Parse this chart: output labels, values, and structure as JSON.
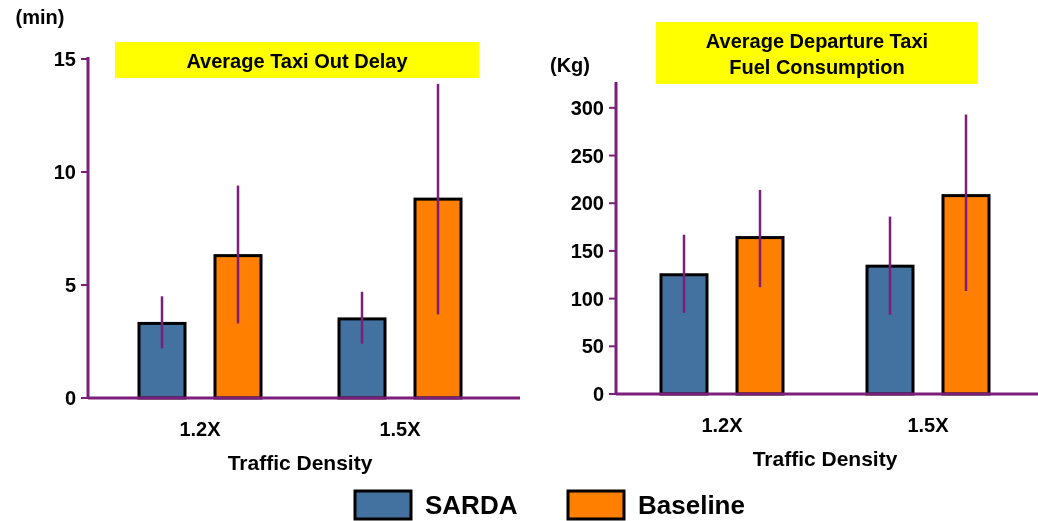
{
  "chart_data": [
    {
      "type": "bar",
      "title": "Average Taxi Out Delay",
      "ylabel": "(min)",
      "xlabel": "Traffic Density",
      "categories": [
        "1.2X",
        "1.5X"
      ],
      "series": [
        {
          "name": "SARDA",
          "color": "#4472a0",
          "values": [
            3.3,
            3.5
          ],
          "errors": [
            [
              2.2,
              4.5
            ],
            [
              2.4,
              4.7
            ]
          ]
        },
        {
          "name": "Baseline",
          "color": "#ff7f00",
          "values": [
            6.3,
            8.8
          ],
          "errors": [
            [
              3.3,
              9.4
            ],
            [
              3.7,
              13.9
            ]
          ]
        }
      ],
      "ylim": [
        0,
        15
      ],
      "yticks": [
        0,
        5,
        10,
        15
      ],
      "grid": false,
      "legend": "bottom"
    },
    {
      "type": "bar",
      "title": "Average Departure Taxi Fuel Consumption",
      "ylabel": "(Kg)",
      "xlabel": "Traffic Density",
      "categories": [
        "1.2X",
        "1.5X"
      ],
      "series": [
        {
          "color": "#4472a0",
          "values": [
            125,
            134
          ],
          "errors": [
            [
              85,
              167
            ],
            [
              83,
              186
            ]
          ]
        },
        {
          "color": "#ff7f00",
          "values": [
            164,
            208
          ],
          "errors": [
            [
              112,
              214
            ],
            [
              108,
              293
            ]
          ]
        }
      ],
      "ylim": [
        0,
        325
      ],
      "yticks": [
        0,
        50,
        100,
        150,
        200,
        250,
        300
      ],
      "grid": false
    }
  ]
}
